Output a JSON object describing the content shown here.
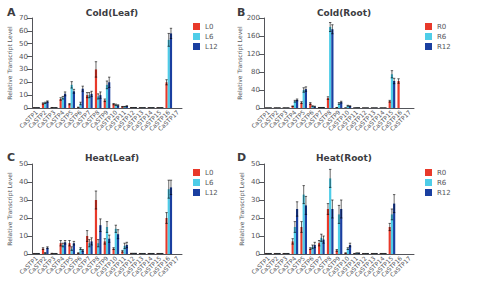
{
  "chart_data": [
    {
      "type": "bar",
      "title": "Cold(Leaf)",
      "annotations": [
        "A"
      ],
      "ylabel": "Relative Transcript Level",
      "categories": [
        "CaSTP1",
        "CaSTP2",
        "CaSTP3",
        "CaSTP4",
        "CaSTP5",
        "CaSTP6",
        "CaSTP7",
        "CaSTP8",
        "CaSTP9",
        "CaSTP10",
        "CaSTP11",
        "CaSTP12",
        "CaSTP13",
        "CaSTP14",
        "CaSTP15",
        "CaSTP16",
        "CaSTP17"
      ],
      "series": [
        {
          "name": "L0",
          "color": "#e8392a",
          "values": [
            0.2,
            3.5,
            0.3,
            7.0,
            3.0,
            0.5,
            10.0,
            30.0,
            6.0,
            3.0,
            1.0,
            0.3,
            0.2,
            0.2,
            0.2,
            20.0,
            0.0
          ],
          "errors": [
            0.1,
            0.5,
            0.1,
            1.0,
            0.5,
            0.2,
            2.0,
            6.0,
            1.0,
            0.5,
            0.2,
            0.1,
            0.1,
            0.1,
            0.1,
            2.0,
            0.0
          ]
        },
        {
          "name": "L6",
          "color": "#4ecde8",
          "values": [
            0.2,
            4.0,
            0.2,
            8.0,
            18.0,
            3.5,
            10.0,
            9.0,
            18.0,
            2.5,
            1.0,
            0.3,
            0.2,
            0.2,
            0.2,
            53.0,
            0.0
          ],
          "errors": [
            0.1,
            0.5,
            0.1,
            1.0,
            2.5,
            1.0,
            2.0,
            2.0,
            3.0,
            0.5,
            0.2,
            0.1,
            0.1,
            0.1,
            0.1,
            5.0,
            0.0
          ]
        },
        {
          "name": "L12",
          "color": "#1a3fa0",
          "values": [
            0.2,
            5.0,
            0.2,
            11.0,
            13.0,
            15.0,
            11.0,
            10.0,
            20.0,
            2.0,
            1.5,
            0.3,
            0.2,
            0.2,
            0.2,
            58.0,
            0.0
          ],
          "errors": [
            0.1,
            0.5,
            0.1,
            1.5,
            1.5,
            2.0,
            2.0,
            2.5,
            4.0,
            0.5,
            0.3,
            0.1,
            0.1,
            0.1,
            0.1,
            4.0,
            0.0
          ]
        }
      ],
      "ylim": [
        0,
        70
      ],
      "yticks": [
        0,
        10,
        20,
        30,
        40,
        50,
        60,
        70
      ],
      "grid": false,
      "legend": "right"
    },
    {
      "type": "bar",
      "title": "Cold(Root)",
      "annotations": [
        "B"
      ],
      "ylabel": "Relative Transcript Level",
      "categories": [
        "CaSTP1",
        "CaSTP2",
        "CaSTP3",
        "CaSTP4",
        "CaSTP5",
        "CaSTP6",
        "CaSTP7",
        "CaSTP8",
        "CaSTP9",
        "CaSTP10",
        "CaSTP11",
        "CaSTP12",
        "CaSTP13",
        "CaSTP14",
        "CaSTP15",
        "CaSTP16",
        "CaSTP17"
      ],
      "series": [
        {
          "name": "R0",
          "color": "#e8392a",
          "values": [
            0.2,
            0.2,
            0.2,
            4.0,
            12.0,
            10.0,
            1.0,
            22.0,
            1.0,
            0.2,
            0.2,
            0.2,
            0.2,
            0.2,
            15.0,
            60.0,
            0.0
          ],
          "errors": [
            0.1,
            0.1,
            0.1,
            0.5,
            2.0,
            2.0,
            0.2,
            3.0,
            0.2,
            0.1,
            0.1,
            0.1,
            0.1,
            0.1,
            2.0,
            5.0,
            0.0
          ]
        },
        {
          "name": "R6",
          "color": "#4ecde8",
          "values": [
            0.2,
            0.2,
            0.2,
            15.0,
            40.0,
            4.0,
            1.0,
            180.0,
            10.0,
            5.0,
            0.5,
            0.2,
            0.2,
            0.2,
            75.0,
            0.0,
            0.0
          ],
          "errors": [
            0.1,
            0.1,
            0.1,
            2.0,
            5.0,
            1.0,
            0.2,
            10.0,
            2.0,
            1.0,
            0.1,
            0.1,
            0.1,
            0.1,
            8.0,
            0.0,
            0.0
          ]
        },
        {
          "name": "R12",
          "color": "#1a3fa0",
          "values": [
            0.2,
            0.2,
            0.2,
            18.0,
            42.0,
            3.0,
            1.0,
            175.0,
            13.0,
            4.0,
            0.5,
            0.2,
            0.2,
            0.2,
            60.0,
            0.0,
            0.0
          ],
          "errors": [
            0.1,
            0.1,
            0.1,
            2.0,
            5.0,
            1.0,
            0.2,
            10.0,
            2.0,
            1.0,
            0.1,
            0.1,
            0.1,
            0.1,
            6.0,
            0.0,
            0.0
          ]
        }
      ],
      "ylim": [
        0,
        200
      ],
      "yticks": [
        0,
        40,
        80,
        120,
        160,
        200
      ],
      "grid": false,
      "legend": "right"
    },
    {
      "type": "bar",
      "title": "Heat(Leaf)",
      "annotations": [
        "C"
      ],
      "ylabel": "Relative Transcript Level",
      "categories": [
        "CaSTP1",
        "CaSTP2",
        "CaSTP3",
        "CaSTP4",
        "CaSTP5",
        "CaSTP6",
        "CaSTP7",
        "CaSTP8",
        "CaSTP9",
        "CaSTP10",
        "CaSTP11",
        "CaSTP12",
        "CaSTP13",
        "CaSTP14",
        "CaSTP15",
        "CaSTP16",
        "CaSTP17"
      ],
      "series": [
        {
          "name": "L0",
          "color": "#e8392a",
          "values": [
            0.2,
            3.0,
            0.3,
            6.0,
            6.0,
            0.5,
            10.0,
            30.0,
            7.0,
            3.0,
            1.5,
            0.3,
            0.2,
            0.2,
            0.2,
            20.0,
            0.0
          ],
          "errors": [
            0.1,
            0.5,
            0.1,
            1.5,
            1.5,
            0.2,
            3.0,
            5.0,
            1.5,
            0.5,
            0.5,
            0.1,
            0.1,
            0.1,
            0.1,
            3.0,
            0.0
          ]
        },
        {
          "name": "L6",
          "color": "#4ecde8",
          "values": [
            0.2,
            0.5,
            0.2,
            5.0,
            3.0,
            3.0,
            6.0,
            6.0,
            15.0,
            14.0,
            4.5,
            0.3,
            0.2,
            0.2,
            0.2,
            36.0,
            0.0
          ],
          "errors": [
            0.1,
            0.3,
            0.1,
            1.0,
            1.0,
            0.5,
            2.0,
            2.0,
            3.0,
            2.0,
            1.5,
            0.1,
            0.1,
            0.1,
            0.1,
            5.0,
            0.0
          ]
        },
        {
          "name": "L12",
          "color": "#1a3fa0",
          "values": [
            0.2,
            3.5,
            0.2,
            6.5,
            6.0,
            2.0,
            7.0,
            16.0,
            8.5,
            11.0,
            5.0,
            0.3,
            0.2,
            0.2,
            0.2,
            37.0,
            0.0
          ],
          "errors": [
            0.1,
            0.5,
            0.1,
            1.0,
            1.0,
            0.5,
            2.0,
            3.5,
            2.0,
            2.5,
            1.5,
            0.1,
            0.1,
            0.1,
            0.1,
            4.0,
            0.0
          ]
        }
      ],
      "ylim": [
        0,
        50
      ],
      "yticks": [
        0,
        10,
        20,
        30,
        40,
        50
      ],
      "grid": false,
      "legend": "right"
    },
    {
      "type": "bar",
      "title": "Heat(Root)",
      "annotations": [
        "D"
      ],
      "ylabel": "Relative Transcript Level",
      "categories": [
        "CaSTP1",
        "CaSTP2",
        "CaSTP3",
        "CaSTP4",
        "CaSTP5",
        "CaSTP6",
        "CaSTP7",
        "CaSTP8",
        "CaSTP9",
        "CaSTP10",
        "CaSTP11",
        "CaSTP12",
        "CaSTP13",
        "CaSTP14",
        "CaSTP15",
        "CaSTP16",
        "CaSTP17"
      ],
      "series": [
        {
          "name": "R0",
          "color": "#e8392a",
          "values": [
            0.2,
            0.2,
            0.2,
            7.0,
            15.0,
            3.0,
            6.0,
            25.0,
            2.0,
            0.5,
            0.2,
            0.2,
            0.2,
            0.2,
            15.0,
            0.0,
            0.0
          ],
          "errors": [
            0.1,
            0.1,
            0.1,
            1.5,
            3.0,
            0.5,
            1.5,
            3.0,
            0.5,
            0.2,
            0.1,
            0.1,
            0.1,
            0.1,
            2.0,
            0.0,
            0.0
          ]
        },
        {
          "name": "R6",
          "color": "#4ecde8",
          "values": [
            0.2,
            0.2,
            0.2,
            15.0,
            33.0,
            4.0,
            9.0,
            42.0,
            22.0,
            3.0,
            0.5,
            0.2,
            0.2,
            0.2,
            22.0,
            0.0,
            0.0
          ],
          "errors": [
            0.1,
            0.1,
            0.1,
            3.0,
            5.0,
            1.0,
            2.0,
            5.0,
            5.0,
            0.5,
            0.1,
            0.1,
            0.1,
            0.1,
            3.0,
            0.0,
            0.0
          ]
        },
        {
          "name": "R12",
          "color": "#1a3fa0",
          "values": [
            0.2,
            0.2,
            0.2,
            25.0,
            27.0,
            5.0,
            8.0,
            25.0,
            25.0,
            5.0,
            0.5,
            0.2,
            0.2,
            0.2,
            28.0,
            0.0,
            0.0
          ],
          "errors": [
            0.1,
            0.1,
            0.1,
            4.0,
            5.0,
            1.5,
            2.0,
            5.0,
            5.0,
            1.0,
            0.1,
            0.1,
            0.1,
            0.1,
            5.0,
            0.0,
            0.0
          ]
        }
      ],
      "ylim": [
        0,
        50
      ],
      "yticks": [
        0,
        10,
        20,
        30,
        40,
        50
      ],
      "grid": false,
      "legend": "right"
    }
  ]
}
